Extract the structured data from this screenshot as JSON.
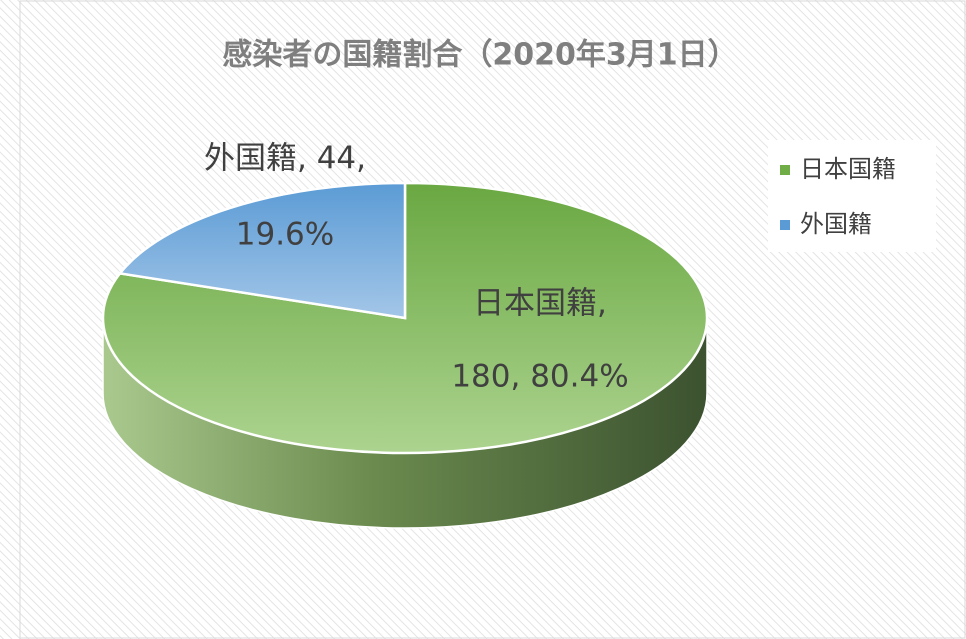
{
  "chart_data": {
    "type": "pie",
    "title": "感染者の国籍割合（2020年3月1日）",
    "categories": [
      "日本国籍",
      "外国籍"
    ],
    "values": [
      180,
      44
    ],
    "value_labels": [
      [
        "日本国籍,",
        "180, 80.4%"
      ],
      [
        "外国籍, 44,",
        "19.6%"
      ]
    ],
    "colors": [
      "#70ad47",
      "#5b9bd5"
    ],
    "legend": "right",
    "three_d": true
  }
}
